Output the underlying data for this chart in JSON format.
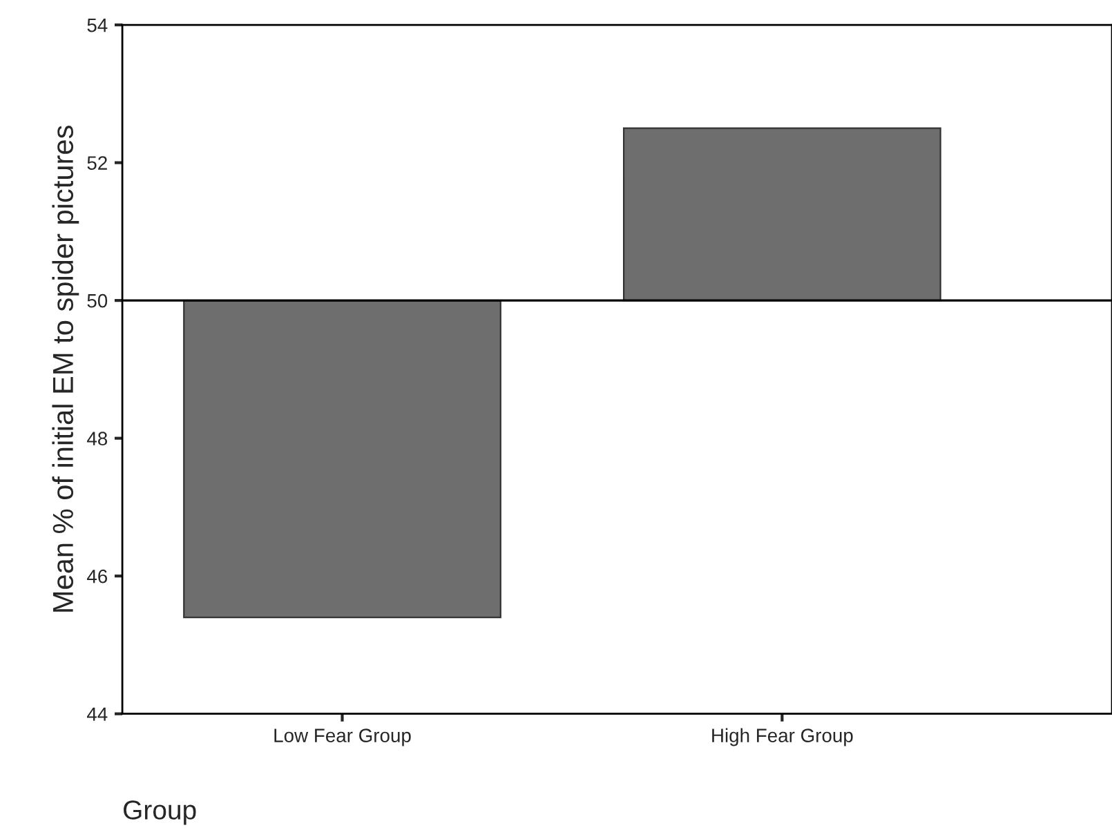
{
  "chart_data": {
    "type": "bar",
    "ylabel": "Mean % of initial EM to spider pictures",
    "xlabel": "Group",
    "categories": [
      "Low Fear Group",
      "High Fear Group"
    ],
    "base": [
      50,
      50
    ],
    "values": [
      -4.6,
      2.5
    ],
    "color": "#6e6e6e",
    "ylim": [
      44,
      54
    ],
    "yticks": [
      44,
      46,
      48,
      50,
      52,
      54
    ],
    "ref_lines": [
      {
        "axis": "y",
        "value": 50,
        "color": "#000000"
      }
    ],
    "grid": false,
    "legend": false
  }
}
